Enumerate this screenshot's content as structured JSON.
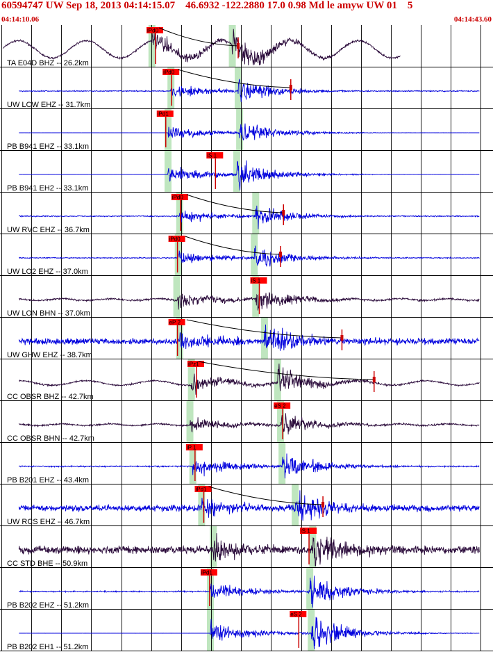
{
  "header": {
    "title": "60594747 UW Sep 18, 2013 04:14:15.07    46.6932 -122.2880 17.0 0.98 Md le amyw UW 01    5",
    "start_time": "04:14:10.06",
    "end_time": "04:14:43.60"
  },
  "colors": {
    "title": "#cc0000",
    "blue_trace": "#0000dd",
    "purple_trace": "#2a0a3a",
    "pick_box": "#ff0000",
    "pick_line": "#cc0000",
    "highlight": "#bfe6bf",
    "grid": "#000000"
  },
  "chart_data": {
    "type": "seismogram",
    "time_range": [
      "04:14:10.06",
      "04:14:43.60"
    ],
    "traces": [
      {
        "label": "TA E04D BHZ -- 26.2km",
        "color": "purple",
        "picks": [
          {
            "label": "iPd0",
            "t": 10.5,
            "kind": "P"
          }
        ],
        "p_band": 10.3,
        "s_band": 15.8,
        "coda_mark": 16.2,
        "noise": "long-period",
        "amp": 0.8
      },
      {
        "label": "UW LCW EHZ -- 31.7km",
        "color": "blue",
        "picks": [
          {
            "label": "iPd0",
            "t": 11.6,
            "kind": "P"
          }
        ],
        "p_band": 11.6,
        "s_band": 16.2,
        "coda_mark": 19.8,
        "noise": "quiet",
        "amp": 0.55
      },
      {
        "label": "PB B941 EHZ -- 33.1km",
        "color": "blue",
        "picks": [
          {
            "label": "iPd1",
            "t": 11.2,
            "kind": "P"
          }
        ],
        "p_band": 11.4,
        "s_band": 16.3,
        "coda_mark": null,
        "noise": "flat",
        "amp": 0.6
      },
      {
        "label": "PB B941 EH2 -- 33.1km",
        "color": "blue",
        "picks": [
          {
            "label": "iS 1",
            "t": 14.6,
            "kind": "S"
          }
        ],
        "p_band": 11.4,
        "s_band": 16.1,
        "coda_mark": null,
        "noise": "flat",
        "amp": 0.65
      },
      {
        "label": "UW RVC EHZ -- 36.7km",
        "color": "blue",
        "picks": [
          {
            "label": "iPd0",
            "t": 12.2,
            "kind": "P"
          }
        ],
        "p_band": 12.2,
        "s_band": 17.4,
        "coda_mark": 19.3,
        "noise": "quiet",
        "amp": 0.55
      },
      {
        "label": "UW LO2 EHZ -- 37.0km",
        "color": "blue",
        "picks": [
          {
            "label": "iPd0",
            "t": 12.0,
            "kind": "P"
          }
        ],
        "p_band": 12.1,
        "s_band": 17.3,
        "coda_mark": 19.1,
        "noise": "quiet",
        "amp": 0.55
      },
      {
        "label": "UW LON BHN -- 37.0km",
        "color": "purple",
        "picks": [
          {
            "label": "iS 1",
            "t": 17.6,
            "kind": "S"
          }
        ],
        "p_band": 12.0,
        "s_band": 17.4,
        "coda_mark": null,
        "noise": "smooth",
        "amp": 0.6
      },
      {
        "label": "UW GHW EHZ -- 38.7km",
        "color": "blue",
        "picks": [
          {
            "label": "eP 2",
            "t": 12.0,
            "kind": "P"
          }
        ],
        "p_band": 12.2,
        "s_band": 18.0,
        "coda_mark": 23.3,
        "noise": "noisy",
        "amp": 0.75
      },
      {
        "label": "CC OBSR BHZ -- 42.7km",
        "color": "purple",
        "picks": [
          {
            "label": "iPz1",
            "t": 13.3,
            "kind": "P"
          }
        ],
        "p_band": 13.0,
        "s_band": 18.9,
        "coda_mark": 25.5,
        "noise": "long-period",
        "amp": 0.7
      },
      {
        "label": "CC OBSR BHN -- 42.7km",
        "color": "purple",
        "picks": [
          {
            "label": "eS 2",
            "t": 19.2,
            "kind": "S"
          }
        ],
        "p_band": 12.9,
        "s_band": 19.1,
        "coda_mark": null,
        "noise": "smooth",
        "amp": 0.55
      },
      {
        "label": "PB B201 EHZ -- 43.4km",
        "color": "blue",
        "picks": [
          {
            "label": "iP 1",
            "t": 13.2,
            "kind": "P"
          }
        ],
        "p_band": 13.1,
        "s_band": 19.2,
        "coda_mark": null,
        "noise": "quiet",
        "amp": 0.7
      },
      {
        "label": "UW RCS EHZ -- 46.7km",
        "color": "blue",
        "picks": [
          {
            "label": "iPd1",
            "t": 13.8,
            "kind": "P"
          }
        ],
        "p_band": 13.7,
        "s_band": 20.1,
        "coda_mark": 22.0,
        "noise": "noisy",
        "amp": 0.75
      },
      {
        "label": "CC STD BHE -- 50.9km",
        "color": "purple",
        "picks": [
          {
            "label": "iS 1",
            "t": 21.0,
            "kind": "S"
          }
        ],
        "p_band": 14.5,
        "s_band": 21.3,
        "coda_mark": null,
        "noise": "noisy",
        "amp": 0.9
      },
      {
        "label": "PB B202 EHZ -- 51.2km",
        "color": "blue",
        "picks": [
          {
            "label": "iPd1",
            "t": 14.2,
            "kind": "P"
          }
        ],
        "p_band": 14.3,
        "s_band": 21.1,
        "coda_mark": null,
        "noise": "quiet",
        "amp": 0.7
      },
      {
        "label": "PB B202 EH1 -- 51.2km",
        "color": "blue",
        "picks": [
          {
            "label": "eS 2",
            "t": 20.3,
            "kind": "S"
          }
        ],
        "p_band": 14.3,
        "s_band": 21.2,
        "coda_mark": null,
        "noise": "flat",
        "amp": 0.8
      }
    ]
  }
}
